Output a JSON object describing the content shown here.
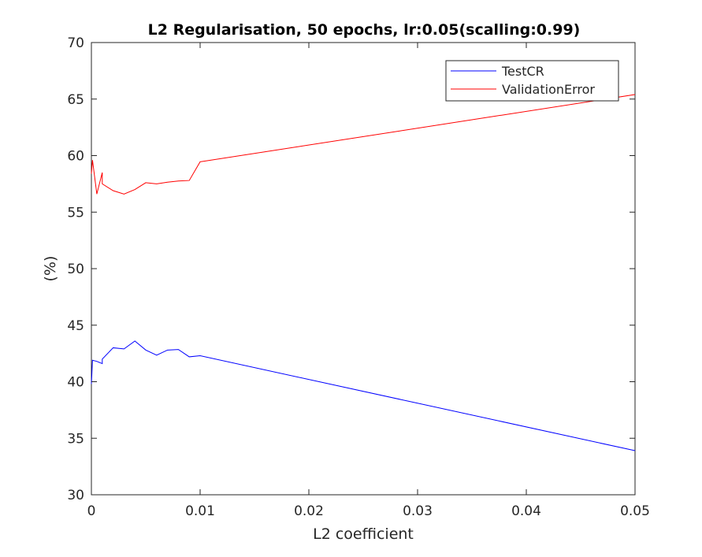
{
  "chart_data": {
    "type": "line",
    "title": "L2 Regularisation, 50 epochs, lr:0.05(scalling:0.99)",
    "xlabel": "L2 coefficient",
    "ylabel": "(%)",
    "xlim": [
      0,
      0.05
    ],
    "ylim": [
      30,
      70
    ],
    "x_ticks": [
      0,
      0.01,
      0.02,
      0.03,
      0.04,
      0.05
    ],
    "x_tick_labels": [
      "0",
      "0.01",
      "0.02",
      "0.03",
      "0.04",
      "0.05"
    ],
    "y_ticks": [
      30,
      35,
      40,
      45,
      50,
      55,
      60,
      65,
      70
    ],
    "y_tick_labels": [
      "30",
      "35",
      "40",
      "45",
      "50",
      "55",
      "60",
      "65",
      "70"
    ],
    "grid": false,
    "legend_position": "top-right",
    "series": [
      {
        "name": "TestCR",
        "color": "#0000ff",
        "x": [
          0,
          0.0001,
          0.0005,
          0.001,
          0.001,
          0.002,
          0.003,
          0.004,
          0.005,
          0.006,
          0.007,
          0.008,
          0.009,
          0.01,
          0.05
        ],
        "y": [
          39.8,
          41.9,
          41.8,
          41.6,
          42.0,
          43.0,
          42.9,
          43.6,
          42.8,
          42.35,
          42.8,
          42.85,
          42.2,
          42.3,
          33.9
        ]
      },
      {
        "name": "ValidationError",
        "color": "#ff0000",
        "x": [
          0,
          0.0001,
          0.0005,
          0.001,
          0.001,
          0.002,
          0.003,
          0.004,
          0.005,
          0.006,
          0.007,
          0.008,
          0.009,
          0.01,
          0.05
        ],
        "y": [
          58.4,
          59.6,
          56.6,
          58.5,
          57.5,
          56.9,
          56.6,
          57.0,
          57.6,
          57.5,
          57.65,
          57.75,
          57.8,
          59.45,
          65.4
        ]
      }
    ]
  }
}
